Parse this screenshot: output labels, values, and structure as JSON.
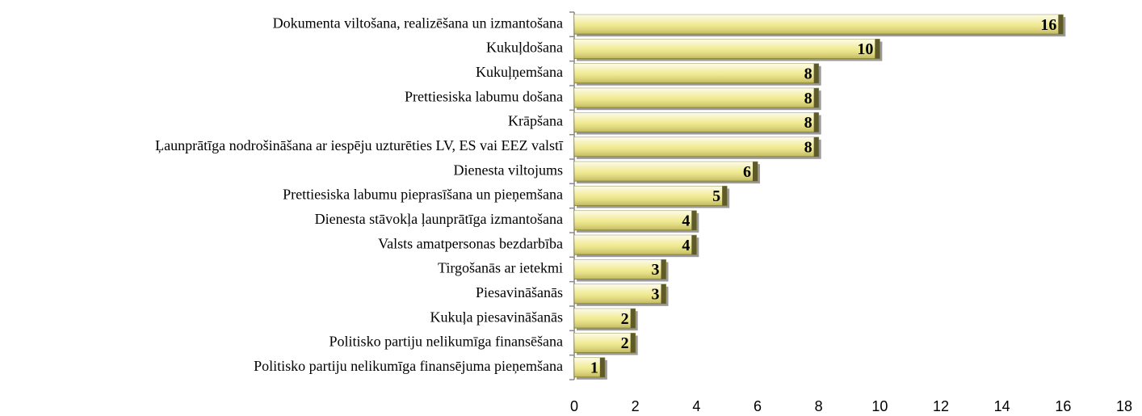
{
  "chart_data": {
    "type": "bar",
    "orientation": "horizontal",
    "categories": [
      "Dokumenta viltošana, realizēšana un izmantošana",
      "Kukuļdošana",
      "Kukuļņemšana",
      "Prettiesiska labumu došana",
      "Krāpšana",
      "Ļaunprātīga nodrošināšana ar iespēju uzturēties LV, ES vai EEZ valstī",
      "Dienesta viltojums",
      "Prettiesiska labumu pieprasīšana un pieņemšana",
      "Dienesta stāvokļa ļaunprātīga izmantošana",
      "Valsts amatpersonas bezdarbība",
      "Tirgošanās ar ietekmi",
      "Piesavināšanās",
      "Kukuļa piesavināšanās",
      "Politisko partiju nelikumīga finansēšana",
      "Politisko partiju nelikumīga finansējuma pieņemšana"
    ],
    "values": [
      16,
      10,
      8,
      8,
      8,
      8,
      6,
      5,
      4,
      4,
      3,
      3,
      2,
      2,
      1
    ],
    "color": "#eee67a",
    "xlim": [
      0,
      18
    ],
    "xticks": [
      0,
      2,
      4,
      6,
      8,
      10,
      12,
      14,
      16,
      18
    ],
    "grid": false
  }
}
